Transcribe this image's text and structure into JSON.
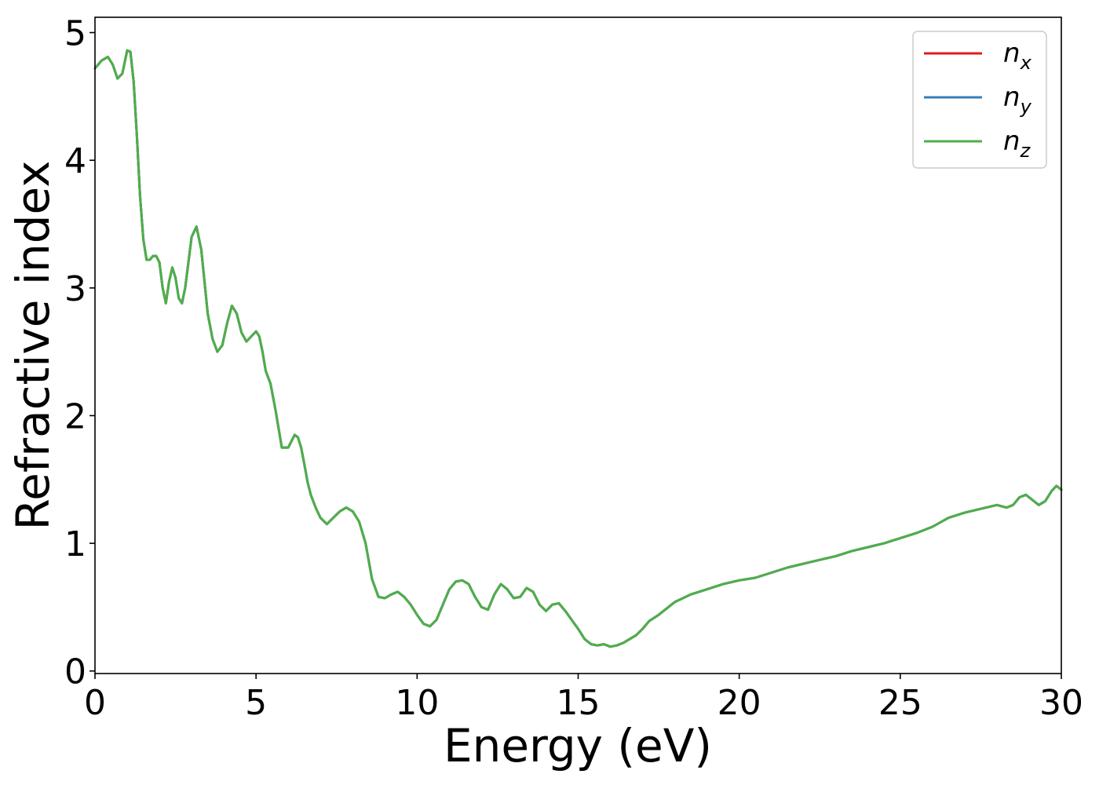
{
  "chart_data": {
    "type": "line",
    "title": "",
    "xlabel": "Energy (eV)",
    "ylabel": "Refractive index",
    "xlim": [
      0,
      30
    ],
    "ylim": [
      -0.02,
      5.12
    ],
    "xticks": [
      0,
      5,
      10,
      15,
      20,
      25,
      30
    ],
    "yticks": [
      0,
      1,
      2,
      3,
      4,
      5
    ],
    "grid": false,
    "legend_position": "top-right",
    "series": [
      {
        "name": "n_x",
        "label_main": "n",
        "label_sub": "x",
        "color": "#e41a1c",
        "x": [
          0,
          0.2,
          0.4,
          0.55,
          0.7,
          0.85,
          1.0,
          1.1,
          1.2,
          1.3,
          1.4,
          1.5,
          1.6,
          1.7,
          1.8,
          1.9,
          2.0,
          2.1,
          2.2,
          2.3,
          2.4,
          2.5,
          2.6,
          2.7,
          2.8,
          2.9,
          3.0,
          3.15,
          3.3,
          3.4,
          3.5,
          3.65,
          3.8,
          3.95,
          4.1,
          4.25,
          4.4,
          4.55,
          4.7,
          4.85,
          5.0,
          5.1,
          5.2,
          5.3,
          5.45,
          5.6,
          5.8,
          6.0,
          6.2,
          6.3,
          6.4,
          6.5,
          6.6,
          6.7,
          6.85,
          7.0,
          7.2,
          7.4,
          7.6,
          7.8,
          8.0,
          8.2,
          8.4,
          8.6,
          8.8,
          9.0,
          9.2,
          9.4,
          9.6,
          9.8,
          10.0,
          10.2,
          10.4,
          10.6,
          10.8,
          11.0,
          11.2,
          11.4,
          11.6,
          11.8,
          12.0,
          12.2,
          12.4,
          12.6,
          12.8,
          13.0,
          13.2,
          13.4,
          13.6,
          13.8,
          14.0,
          14.2,
          14.4,
          14.6,
          14.8,
          15.0,
          15.2,
          15.4,
          15.6,
          15.8,
          16.0,
          16.2,
          16.4,
          16.6,
          16.8,
          17.0,
          17.2,
          17.5,
          17.8,
          18.0,
          18.5,
          19.0,
          19.5,
          20.0,
          20.5,
          21.0,
          21.5,
          22.0,
          22.5,
          23.0,
          23.5,
          24.0,
          24.5,
          25.0,
          25.5,
          26.0,
          26.5,
          27.0,
          27.5,
          28.0,
          28.3,
          28.5,
          28.7,
          28.9,
          29.1,
          29.3,
          29.5,
          29.7,
          29.85,
          30.0
        ],
        "y": [
          4.72,
          4.78,
          4.81,
          4.75,
          4.64,
          4.68,
          4.86,
          4.85,
          4.62,
          4.2,
          3.72,
          3.38,
          3.22,
          3.22,
          3.25,
          3.25,
          3.2,
          3.0,
          2.88,
          3.05,
          3.16,
          3.08,
          2.92,
          2.88,
          3.0,
          3.2,
          3.4,
          3.48,
          3.3,
          3.05,
          2.8,
          2.6,
          2.5,
          2.55,
          2.72,
          2.86,
          2.8,
          2.65,
          2.58,
          2.62,
          2.66,
          2.62,
          2.5,
          2.35,
          2.25,
          2.05,
          1.75,
          1.75,
          1.85,
          1.83,
          1.75,
          1.62,
          1.48,
          1.38,
          1.28,
          1.2,
          1.15,
          1.2,
          1.25,
          1.28,
          1.25,
          1.17,
          1.0,
          0.72,
          0.58,
          0.57,
          0.6,
          0.62,
          0.58,
          0.52,
          0.44,
          0.37,
          0.35,
          0.4,
          0.52,
          0.64,
          0.7,
          0.71,
          0.68,
          0.58,
          0.5,
          0.48,
          0.6,
          0.68,
          0.64,
          0.57,
          0.58,
          0.65,
          0.62,
          0.52,
          0.47,
          0.52,
          0.53,
          0.47,
          0.4,
          0.33,
          0.25,
          0.21,
          0.2,
          0.21,
          0.19,
          0.2,
          0.22,
          0.25,
          0.28,
          0.33,
          0.39,
          0.44,
          0.5,
          0.54,
          0.6,
          0.64,
          0.68,
          0.71,
          0.73,
          0.77,
          0.81,
          0.84,
          0.87,
          0.9,
          0.94,
          0.97,
          1.0,
          1.04,
          1.08,
          1.13,
          1.2,
          1.24,
          1.27,
          1.3,
          1.28,
          1.3,
          1.36,
          1.38,
          1.34,
          1.3,
          1.33,
          1.41,
          1.45,
          1.42
        ]
      },
      {
        "name": "n_y",
        "label_main": "n",
        "label_sub": "y",
        "color": "#377eb8",
        "x": [
          0,
          0.2,
          0.4,
          0.55,
          0.7,
          0.85,
          1.0,
          1.1,
          1.2,
          1.3,
          1.4,
          1.5,
          1.6,
          1.7,
          1.8,
          1.9,
          2.0,
          2.1,
          2.2,
          2.3,
          2.4,
          2.5,
          2.6,
          2.7,
          2.8,
          2.9,
          3.0,
          3.15,
          3.3,
          3.4,
          3.5,
          3.65,
          3.8,
          3.95,
          4.1,
          4.25,
          4.4,
          4.55,
          4.7,
          4.85,
          5.0,
          5.1,
          5.2,
          5.3,
          5.45,
          5.6,
          5.8,
          6.0,
          6.2,
          6.3,
          6.4,
          6.5,
          6.6,
          6.7,
          6.85,
          7.0,
          7.2,
          7.4,
          7.6,
          7.8,
          8.0,
          8.2,
          8.4,
          8.6,
          8.8,
          9.0,
          9.2,
          9.4,
          9.6,
          9.8,
          10.0,
          10.2,
          10.4,
          10.6,
          10.8,
          11.0,
          11.2,
          11.4,
          11.6,
          11.8,
          12.0,
          12.2,
          12.4,
          12.6,
          12.8,
          13.0,
          13.2,
          13.4,
          13.6,
          13.8,
          14.0,
          14.2,
          14.4,
          14.6,
          14.8,
          15.0,
          15.2,
          15.4,
          15.6,
          15.8,
          16.0,
          16.2,
          16.4,
          16.6,
          16.8,
          17.0,
          17.2,
          17.5,
          17.8,
          18.0,
          18.5,
          19.0,
          19.5,
          20.0,
          20.5,
          21.0,
          21.5,
          22.0,
          22.5,
          23.0,
          23.5,
          24.0,
          24.5,
          25.0,
          25.5,
          26.0,
          26.5,
          27.0,
          27.5,
          28.0,
          28.3,
          28.5,
          28.7,
          28.9,
          29.1,
          29.3,
          29.5,
          29.7,
          29.85,
          30.0
        ],
        "y": [
          4.72,
          4.78,
          4.81,
          4.75,
          4.64,
          4.68,
          4.86,
          4.85,
          4.62,
          4.2,
          3.72,
          3.38,
          3.22,
          3.22,
          3.25,
          3.25,
          3.2,
          3.0,
          2.88,
          3.05,
          3.16,
          3.08,
          2.92,
          2.88,
          3.0,
          3.2,
          3.4,
          3.48,
          3.3,
          3.05,
          2.8,
          2.6,
          2.5,
          2.55,
          2.72,
          2.86,
          2.8,
          2.65,
          2.58,
          2.62,
          2.66,
          2.62,
          2.5,
          2.35,
          2.25,
          2.05,
          1.75,
          1.75,
          1.85,
          1.83,
          1.75,
          1.62,
          1.48,
          1.38,
          1.28,
          1.2,
          1.15,
          1.2,
          1.25,
          1.28,
          1.25,
          1.17,
          1.0,
          0.72,
          0.58,
          0.57,
          0.6,
          0.62,
          0.58,
          0.52,
          0.44,
          0.37,
          0.35,
          0.4,
          0.52,
          0.64,
          0.7,
          0.71,
          0.68,
          0.58,
          0.5,
          0.48,
          0.6,
          0.68,
          0.64,
          0.57,
          0.58,
          0.65,
          0.62,
          0.52,
          0.47,
          0.52,
          0.53,
          0.47,
          0.4,
          0.33,
          0.25,
          0.21,
          0.2,
          0.21,
          0.19,
          0.2,
          0.22,
          0.25,
          0.28,
          0.33,
          0.39,
          0.44,
          0.5,
          0.54,
          0.6,
          0.64,
          0.68,
          0.71,
          0.73,
          0.77,
          0.81,
          0.84,
          0.87,
          0.9,
          0.94,
          0.97,
          1.0,
          1.04,
          1.08,
          1.13,
          1.2,
          1.24,
          1.27,
          1.3,
          1.28,
          1.3,
          1.36,
          1.38,
          1.34,
          1.3,
          1.33,
          1.41,
          1.45,
          1.42
        ]
      },
      {
        "name": "n_z",
        "label_main": "n",
        "label_sub": "z",
        "color": "#4daf4a",
        "x": [
          0,
          0.2,
          0.4,
          0.55,
          0.7,
          0.85,
          1.0,
          1.1,
          1.2,
          1.3,
          1.4,
          1.5,
          1.6,
          1.7,
          1.8,
          1.9,
          2.0,
          2.1,
          2.2,
          2.3,
          2.4,
          2.5,
          2.6,
          2.7,
          2.8,
          2.9,
          3.0,
          3.15,
          3.3,
          3.4,
          3.5,
          3.65,
          3.8,
          3.95,
          4.1,
          4.25,
          4.4,
          4.55,
          4.7,
          4.85,
          5.0,
          5.1,
          5.2,
          5.3,
          5.45,
          5.6,
          5.8,
          6.0,
          6.2,
          6.3,
          6.4,
          6.5,
          6.6,
          6.7,
          6.85,
          7.0,
          7.2,
          7.4,
          7.6,
          7.8,
          8.0,
          8.2,
          8.4,
          8.6,
          8.8,
          9.0,
          9.2,
          9.4,
          9.6,
          9.8,
          10.0,
          10.2,
          10.4,
          10.6,
          10.8,
          11.0,
          11.2,
          11.4,
          11.6,
          11.8,
          12.0,
          12.2,
          12.4,
          12.6,
          12.8,
          13.0,
          13.2,
          13.4,
          13.6,
          13.8,
          14.0,
          14.2,
          14.4,
          14.6,
          14.8,
          15.0,
          15.2,
          15.4,
          15.6,
          15.8,
          16.0,
          16.2,
          16.4,
          16.6,
          16.8,
          17.0,
          17.2,
          17.5,
          17.8,
          18.0,
          18.5,
          19.0,
          19.5,
          20.0,
          20.5,
          21.0,
          21.5,
          22.0,
          22.5,
          23.0,
          23.5,
          24.0,
          24.5,
          25.0,
          25.5,
          26.0,
          26.5,
          27.0,
          27.5,
          28.0,
          28.3,
          28.5,
          28.7,
          28.9,
          29.1,
          29.3,
          29.5,
          29.7,
          29.85,
          30.0
        ],
        "y": [
          4.72,
          4.78,
          4.81,
          4.75,
          4.64,
          4.68,
          4.86,
          4.85,
          4.62,
          4.2,
          3.72,
          3.38,
          3.22,
          3.22,
          3.25,
          3.25,
          3.2,
          3.0,
          2.88,
          3.05,
          3.16,
          3.08,
          2.92,
          2.88,
          3.0,
          3.2,
          3.4,
          3.48,
          3.3,
          3.05,
          2.8,
          2.6,
          2.5,
          2.55,
          2.72,
          2.86,
          2.8,
          2.65,
          2.58,
          2.62,
          2.66,
          2.62,
          2.5,
          2.35,
          2.25,
          2.05,
          1.75,
          1.75,
          1.85,
          1.83,
          1.75,
          1.62,
          1.48,
          1.38,
          1.28,
          1.2,
          1.15,
          1.2,
          1.25,
          1.28,
          1.25,
          1.17,
          1.0,
          0.72,
          0.58,
          0.57,
          0.6,
          0.62,
          0.58,
          0.52,
          0.44,
          0.37,
          0.35,
          0.4,
          0.52,
          0.64,
          0.7,
          0.71,
          0.68,
          0.58,
          0.5,
          0.48,
          0.6,
          0.68,
          0.64,
          0.57,
          0.58,
          0.65,
          0.62,
          0.52,
          0.47,
          0.52,
          0.53,
          0.47,
          0.4,
          0.33,
          0.25,
          0.21,
          0.2,
          0.21,
          0.19,
          0.2,
          0.22,
          0.25,
          0.28,
          0.33,
          0.39,
          0.44,
          0.5,
          0.54,
          0.6,
          0.64,
          0.68,
          0.71,
          0.73,
          0.77,
          0.81,
          0.84,
          0.87,
          0.9,
          0.94,
          0.97,
          1.0,
          1.04,
          1.08,
          1.13,
          1.2,
          1.24,
          1.27,
          1.3,
          1.28,
          1.3,
          1.36,
          1.38,
          1.34,
          1.3,
          1.33,
          1.41,
          1.45,
          1.42
        ]
      }
    ]
  }
}
